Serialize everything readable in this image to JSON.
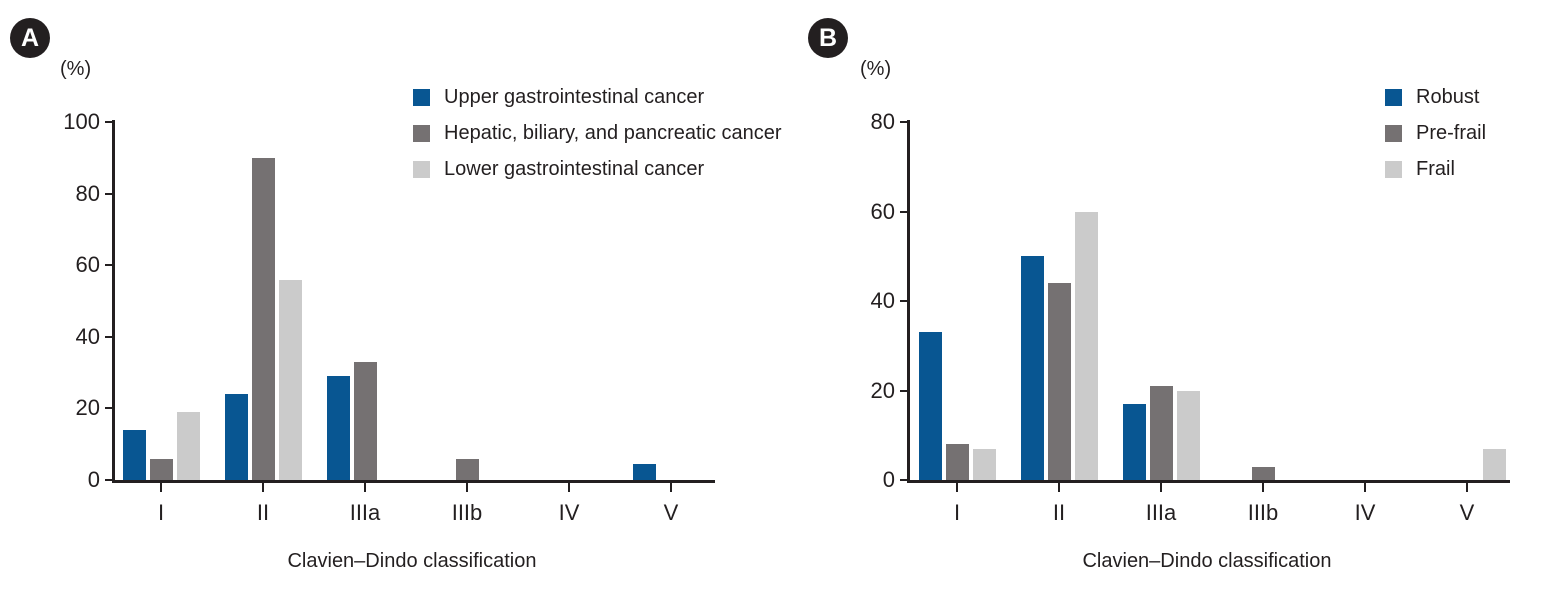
{
  "panels": [
    {
      "badge": "A",
      "percent_label": "(%)",
      "x_axis_title": "Clavien–Dindo classification"
    },
    {
      "badge": "B",
      "percent_label": "(%)",
      "x_axis_title": "Clavien–Dindo classification"
    }
  ],
  "colors": {
    "blue": "#085692",
    "dark_gray": "#757172",
    "light_gray": "#cbcbcb",
    "axis": "#231f20",
    "text": "#231f20"
  },
  "chart_data": [
    {
      "type": "bar",
      "panel": "A",
      "categories": [
        "I",
        "II",
        "IIIa",
        "IIIb",
        "IV",
        "V"
      ],
      "series": [
        {
          "name": "Upper gastrointestinal cancer",
          "color": "#085692",
          "values": [
            14,
            24,
            29,
            0,
            0,
            4.5
          ]
        },
        {
          "name": "Hepatic, biliary, and pancreatic cancer",
          "color": "#757172",
          "values": [
            6,
            90,
            33,
            6,
            0,
            0
          ]
        },
        {
          "name": "Lower gastrointestinal cancer",
          "color": "#cbcbcb",
          "values": [
            19,
            56,
            0,
            0,
            0,
            0
          ]
        }
      ],
      "xlabel": "Clavien–Dindo classification",
      "ylabel": "(%)",
      "ylim": [
        0,
        100
      ],
      "yticks": [
        0,
        20,
        40,
        60,
        80,
        100
      ],
      "grid": false,
      "legend_position": "top-right"
    },
    {
      "type": "bar",
      "panel": "B",
      "categories": [
        "I",
        "II",
        "IIIa",
        "IIIb",
        "IV",
        "V"
      ],
      "series": [
        {
          "name": "Robust",
          "color": "#085692",
          "values": [
            33,
            50,
            17,
            0,
            0,
            0
          ]
        },
        {
          "name": "Pre-frail",
          "color": "#757172",
          "values": [
            8,
            44,
            21,
            3,
            0,
            0
          ]
        },
        {
          "name": "Frail",
          "color": "#cbcbcb",
          "values": [
            7,
            60,
            20,
            0,
            0,
            7
          ]
        }
      ],
      "xlabel": "Clavien–Dindo classification",
      "ylabel": "(%)",
      "ylim": [
        0,
        80
      ],
      "yticks": [
        0,
        20,
        40,
        60,
        80
      ],
      "grid": false,
      "legend_position": "top-right"
    }
  ]
}
